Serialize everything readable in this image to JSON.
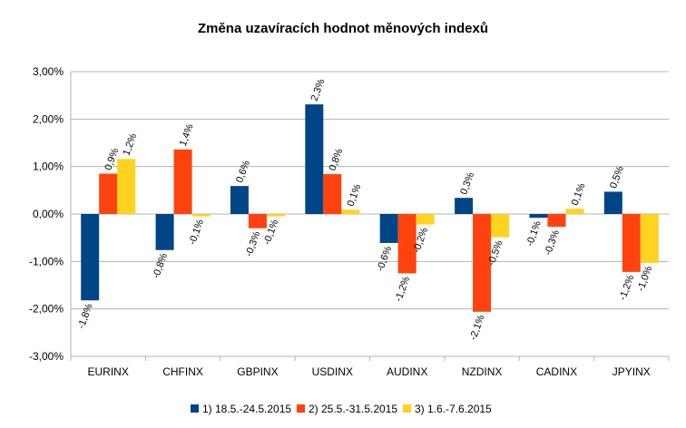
{
  "chart_data": {
    "type": "bar",
    "title": "Změna uzavíracích hodnot měnových indexů",
    "xlabel": "",
    "ylabel": "",
    "ylim": [
      -3.0,
      3.0
    ],
    "y_ticks": [
      "3,00%",
      "2,00%",
      "1,00%",
      "0,00%",
      "-1,00%",
      "-2,00%",
      "-3,00%"
    ],
    "y_tick_values": [
      3,
      2,
      1,
      0,
      -1,
      -2,
      -3
    ],
    "grid": true,
    "legend_position": "bottom",
    "categories": [
      "EURINX",
      "CHFINX",
      "GBPINX",
      "USDINX",
      "AUDINX",
      "NZDINX",
      "CADINX",
      "JPYINX"
    ],
    "series": [
      {
        "name": "1) 18.5.-24.5.2015",
        "color": "#004586",
        "values": [
          -1.82,
          -0.76,
          0.59,
          2.31,
          -0.61,
          0.34,
          -0.08,
          0.47
        ],
        "labels": [
          "-1,8%",
          "-0,8%",
          "0,6%",
          "2,3%",
          "-0,6%",
          "0,3%",
          "-0,1%",
          "0,5%"
        ]
      },
      {
        "name": "2) 25.5.-31.5.2015",
        "color": "#ff420e",
        "values": [
          0.85,
          1.36,
          -0.3,
          0.84,
          -1.25,
          -2.06,
          -0.27,
          -1.22
        ],
        "labels": [
          "0,9%",
          "1,4%",
          "-0,3%",
          "0,8%",
          "-1,2%",
          "-2,1%",
          "-0,3%",
          "-1,2%"
        ]
      },
      {
        "name": "3) 1.6.-7.6.2015",
        "color": "#ffd320",
        "values": [
          1.16,
          -0.05,
          -0.05,
          0.09,
          -0.22,
          -0.49,
          0.11,
          -1.03
        ],
        "labels": [
          "1,2%",
          "-0,1%",
          "-0,1%",
          "0,1%",
          "-0,2%",
          "-0,5%",
          "0,1%",
          "-1,0%"
        ]
      }
    ]
  }
}
